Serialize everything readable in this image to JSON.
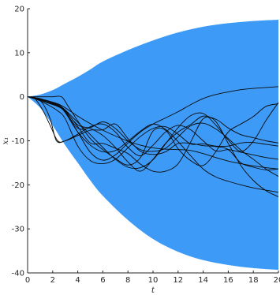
{
  "chart_data": {
    "type": "area",
    "xlabel": "t",
    "ylabel": "x₁",
    "xlim": [
      0,
      20
    ],
    "ylim": [
      -40,
      20
    ],
    "xticks": [
      0,
      2,
      4,
      6,
      8,
      10,
      12,
      14,
      16,
      18,
      20
    ],
    "yticks": [
      -40,
      -30,
      -20,
      -10,
      0,
      10,
      20
    ],
    "xtick_labels": [
      "0",
      "2",
      "4",
      "6",
      "8",
      "10",
      "12",
      "14",
      "16",
      "18",
      "20"
    ],
    "ytick_labels": [
      "-40",
      "-30",
      "-20",
      "-10",
      "0",
      "10",
      "20"
    ],
    "grid": false,
    "colors": {
      "band": "#3d9bf7",
      "lines": "#0a0a0a",
      "axis": "#262626"
    },
    "band": {
      "t": [
        0,
        1,
        2,
        3,
        4,
        5,
        6,
        8,
        10,
        12,
        14,
        16,
        18,
        20
      ],
      "upper": [
        0,
        0.5,
        1.5,
        3.0,
        4.5,
        6.2,
        8.0,
        10.6,
        12.8,
        14.6,
        15.9,
        16.7,
        17.2,
        17.5
      ],
      "lower": [
        0,
        -2.5,
        -6.5,
        -11.0,
        -15.0,
        -19.0,
        -22.5,
        -28.0,
        -32.3,
        -35.2,
        -37.1,
        -38.2,
        -38.9,
        -39.3
      ]
    },
    "series": [
      {
        "t": [
          0,
          0.6,
          1.2,
          1.8,
          2.3,
          3,
          4,
          5,
          6,
          7,
          8,
          9,
          10,
          11,
          12,
          13,
          14,
          15,
          16,
          17,
          18,
          19,
          20
        ],
        "values": [
          0,
          -0.2,
          -1.5,
          -5,
          -10,
          -10,
          -8.8,
          -7.6,
          -7.5,
          -6.2,
          -9.5,
          -12.4,
          -13.1,
          -12.5,
          -10.6,
          -10.6,
          -11.1,
          -11.3,
          -12,
          -15,
          -16,
          -16.6,
          -16.4
        ]
      },
      {
        "t": [
          0,
          0.6,
          1.2,
          1.8,
          2.4,
          3,
          4,
          5,
          6,
          7,
          8,
          9,
          10,
          11,
          12,
          13,
          14,
          15,
          16,
          17,
          18,
          19,
          20
        ],
        "values": [
          0,
          -0.5,
          -3,
          -6.5,
          -10,
          -10,
          -8.5,
          -6.8,
          -6.2,
          -8,
          -11.5,
          -13.4,
          -11,
          -8,
          -6.5,
          -7.5,
          -10,
          -12.3,
          -12,
          -12.6,
          -13.2,
          -13.8,
          -14.2
        ]
      },
      {
        "t": [
          0,
          0.8,
          1.5,
          2,
          2.7,
          3.2,
          4,
          5,
          6,
          7,
          8,
          9,
          10,
          11,
          12,
          13,
          14,
          15,
          16,
          17,
          18,
          19,
          20
        ],
        "values": [
          0,
          0,
          0,
          0,
          0,
          -2,
          -5.5,
          -9.5,
          -12,
          -14,
          -15.5,
          -13.8,
          -7.8,
          -7.6,
          -11.8,
          -14.5,
          -15.6,
          -12.5,
          -8,
          -6.2,
          -4.5,
          -2.2,
          -1.6
        ]
      },
      {
        "t": [
          0,
          0.8,
          1.6,
          2.4,
          3,
          4,
          5,
          6,
          7,
          8,
          9,
          10,
          11,
          12,
          13,
          14,
          15,
          16,
          17,
          18,
          19,
          20
        ],
        "values": [
          0,
          -0.7,
          -1.8,
          -3.2,
          -5,
          -11.2,
          -14.5,
          -15.2,
          -14.2,
          -11.6,
          -9,
          -7.2,
          -6.8,
          -8.5,
          -10.7,
          -10.7,
          -11.2,
          -11.2,
          -10.5,
          -10.4,
          -10.8,
          -11.2
        ]
      },
      {
        "t": [
          0,
          0.8,
          1.6,
          2.4,
          3,
          4,
          5,
          6,
          7,
          8,
          9,
          10,
          11,
          12,
          13,
          14,
          15,
          16,
          17,
          18,
          19,
          20
        ],
        "values": [
          0,
          -0.6,
          -1.4,
          -2.2,
          -3.4,
          -7.1,
          -7,
          -5.7,
          -7.2,
          -10,
          -12,
          -12.4,
          -11.7,
          -9.1,
          -6.6,
          -6,
          -7.3,
          -9.5,
          -12.1,
          -14.2,
          -16.4,
          -18.1
        ]
      },
      {
        "t": [
          0,
          0.8,
          1.6,
          2.4,
          3,
          4,
          5,
          6,
          7,
          8,
          9,
          10,
          11,
          12,
          13,
          14,
          15,
          16,
          17,
          18,
          19,
          20
        ],
        "values": [
          0,
          -0.4,
          -1.3,
          -2.1,
          -3.1,
          -6.8,
          -10.5,
          -10.6,
          -11.7,
          -12.9,
          -15.3,
          -16.9,
          -16.9,
          -15.2,
          -10.3,
          -5,
          -5.1,
          -7.1,
          -8.6,
          -9.3,
          -10,
          -10.5
        ]
      },
      {
        "t": [
          0,
          0.8,
          1.6,
          2.4,
          3,
          4,
          5,
          6,
          7,
          8,
          9,
          10,
          11,
          12,
          13,
          14,
          15,
          16,
          17,
          18,
          19,
          20
        ],
        "values": [
          0,
          -0.5,
          -1.2,
          -2,
          -3.5,
          -8,
          -12.6,
          -14.4,
          -13.2,
          -10.5,
          -8,
          -6.2,
          -4.8,
          -3.4,
          -1.8,
          -0.4,
          0.5,
          1.1,
          1.6,
          1.9,
          2.1,
          2.3
        ]
      },
      {
        "t": [
          0,
          0.8,
          1.6,
          2.4,
          3,
          4,
          5,
          6,
          7,
          8,
          9,
          10,
          11,
          12,
          13,
          14,
          15,
          16,
          17,
          18,
          19,
          20
        ],
        "values": [
          0,
          -0.4,
          -1,
          -1.9,
          -3.6,
          -8,
          -11,
          -12.5,
          -12.2,
          -10.1,
          -7.8,
          -6.2,
          -7.4,
          -10.2,
          -13.4,
          -16.4,
          -18.2,
          -19.2,
          -20,
          -20.7,
          -21.2,
          -21.7
        ]
      },
      {
        "t": [
          0,
          0.8,
          1.6,
          2.4,
          3,
          4,
          5,
          6,
          7,
          8,
          9,
          10,
          11,
          12,
          13,
          14,
          15,
          16,
          17,
          18,
          19,
          20
        ],
        "values": [
          0,
          -0.4,
          -1,
          -1.9,
          -3.2,
          -6.4,
          -7.2,
          -8.8,
          -11.5,
          -14.8,
          -16.9,
          -14.2,
          -10.6,
          -8,
          -6.3,
          -4.4,
          -5.6,
          -10.6,
          -15.6,
          -19,
          -21.3,
          -22.7
        ]
      },
      {
        "t": [
          0,
          0.8,
          1.6,
          2.4,
          3,
          4,
          5,
          6,
          7,
          8,
          9,
          10,
          11,
          12,
          13,
          14,
          15,
          16,
          17,
          18,
          19,
          20
        ],
        "values": [
          0,
          -0.4,
          -1,
          -1.7,
          -3,
          -5.8,
          -8.6,
          -11.5,
          -14.2,
          -16,
          -16.1,
          -14.3,
          -10.7,
          -7,
          -4.3,
          -3.8,
          -6.4,
          -9.8,
          -12.4,
          -10.1,
          -5.4,
          -1.3
        ]
      },
      {
        "t": [
          0,
          0.8,
          1.6,
          2.4,
          3,
          4,
          5,
          6,
          7,
          8,
          9,
          10,
          11,
          12,
          13,
          14,
          15,
          16,
          17,
          18,
          19,
          20
        ],
        "values": [
          0,
          -0.3,
          -0.9,
          -1.6,
          -2.5,
          -4.4,
          -6.1,
          -7.6,
          -8.9,
          -10.1,
          -11,
          -11.6,
          -11.9,
          -12,
          -12.2,
          -12.9,
          -13.8,
          -14.6,
          -15.2,
          -15.7,
          -16.1,
          -16.4
        ]
      }
    ]
  }
}
